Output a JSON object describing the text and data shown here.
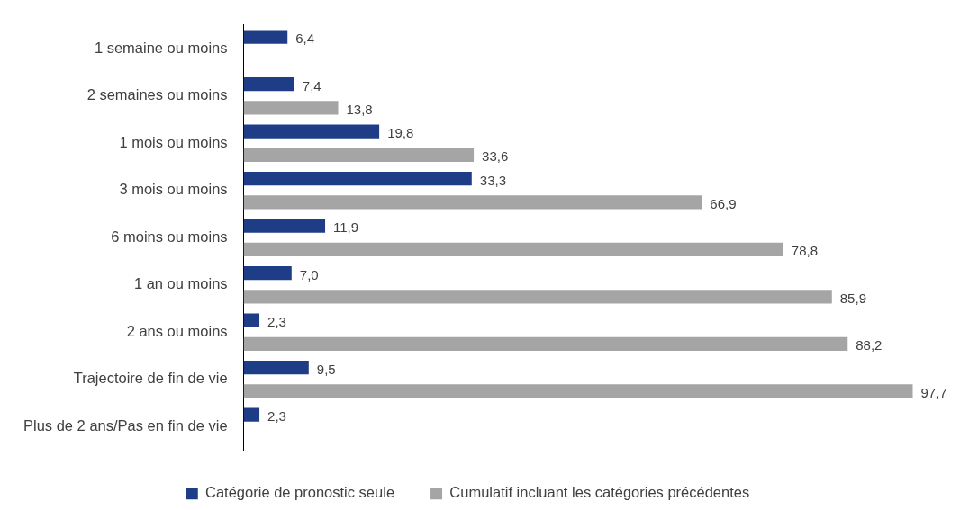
{
  "chart_data": {
    "type": "bar",
    "orientation": "horizontal",
    "categories": [
      "1 semaine ou moins",
      "2 semaines ou moins",
      "1 mois ou moins",
      "3 mois ou moins",
      "6 moins ou moins",
      "1 an ou moins",
      "2 ans ou moins",
      "Trajectoire de fin de vie",
      "Plus de 2 ans/Pas en fin de vie"
    ],
    "series": [
      {
        "name": "Catégorie de pronostic seule",
        "color": "#1f3d87",
        "values": [
          6.4,
          7.4,
          19.8,
          33.3,
          11.9,
          7.0,
          2.3,
          9.5,
          2.3
        ],
        "value_labels": [
          "6,4",
          "7,4",
          "19,8",
          "33,3",
          "11,9",
          "7,0",
          "2,3",
          "9,5",
          "2,3"
        ]
      },
      {
        "name": "Cumulatif incluant les catégories précédentes",
        "color": "#a5a5a5",
        "values": [
          null,
          13.8,
          33.6,
          66.9,
          78.8,
          85.9,
          88.2,
          97.7,
          null
        ],
        "value_labels": [
          null,
          "13,8",
          "33,6",
          "66,9",
          "78,8",
          "85,9",
          "88,2",
          "97,7",
          null
        ]
      }
    ],
    "tick_labels": "y",
    "grid": false,
    "legend": "bottom"
  }
}
